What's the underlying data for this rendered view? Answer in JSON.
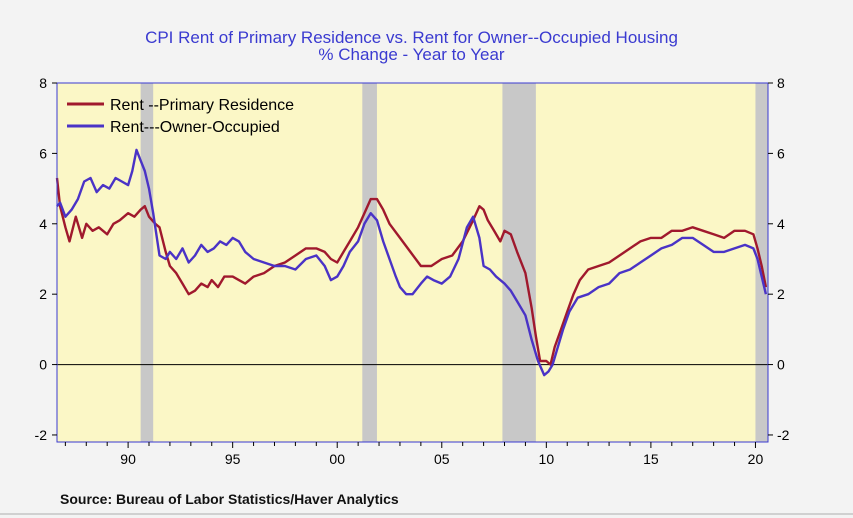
{
  "chart_data": {
    "type": "line",
    "title": "CPI Rent of Primary Residence vs. Rent for Owner--Occupied Housing",
    "subtitle": "% Change - Year to Year",
    "source": "Source:  Bureau of Labor Statistics/Haver Analytics",
    "x_ticks": [
      {
        "value": 1990,
        "label": "90"
      },
      {
        "value": 1995,
        "label": "95"
      },
      {
        "value": 2000,
        "label": "00"
      },
      {
        "value": 2005,
        "label": "05"
      },
      {
        "value": 2010,
        "label": "10"
      },
      {
        "value": 2015,
        "label": "15"
      },
      {
        "value": 2020,
        "label": "20"
      }
    ],
    "y_ticks": [
      {
        "value": 8,
        "label": "8"
      },
      {
        "value": 6,
        "label": "6"
      },
      {
        "value": 4,
        "label": "4"
      },
      {
        "value": 2,
        "label": "2"
      },
      {
        "value": 0,
        "label": "0"
      },
      {
        "value": -2,
        "label": "-2"
      }
    ],
    "xlim": [
      1986.6,
      2020.6
    ],
    "ylim": [
      -2.2,
      8
    ],
    "y_axis_right": true,
    "zero_line": true,
    "grid": false,
    "legend_position": "top-left",
    "recessions": [
      [
        1990.6,
        1991.2
      ],
      [
        2001.2,
        2001.9
      ],
      [
        2007.9,
        2009.5
      ],
      [
        2020.0,
        2020.6
      ]
    ],
    "colors": {
      "plot_background": "#fbf7c6",
      "recession": "#c8c8c8",
      "frame": "#3a3ad0",
      "title": "#3a3ad0"
    },
    "series": [
      {
        "name": "Rent --Primary Residence",
        "color": "#a0192d",
        "x": [
          1986.6,
          1986.75,
          1987.0,
          1987.2,
          1987.5,
          1987.8,
          1988.0,
          1988.3,
          1988.6,
          1989.0,
          1989.3,
          1989.6,
          1990.0,
          1990.3,
          1990.6,
          1990.8,
          1991.0,
          1991.3,
          1991.5,
          1991.8,
          1992.0,
          1992.3,
          1992.6,
          1992.9,
          1993.2,
          1993.5,
          1993.8,
          1994.0,
          1994.3,
          1994.6,
          1995.0,
          1995.3,
          1995.6,
          1996.0,
          1996.5,
          1997.0,
          1997.5,
          1998.0,
          1998.5,
          1999.0,
          1999.4,
          1999.7,
          2000.0,
          2000.3,
          2000.6,
          2001.0,
          2001.3,
          2001.6,
          2001.9,
          2002.2,
          2002.5,
          2003.0,
          2003.5,
          2004.0,
          2004.5,
          2005.0,
          2005.5,
          2006.0,
          2006.5,
          2006.8,
          2007.0,
          2007.2,
          2007.5,
          2007.8,
          2008.0,
          2008.3,
          2008.6,
          2009.0,
          2009.3,
          2009.5,
          2009.7,
          2010.0,
          2010.2,
          2010.4,
          2010.7,
          2011.0,
          2011.3,
          2011.6,
          2012.0,
          2012.5,
          2013.0,
          2013.5,
          2014.0,
          2014.5,
          2015.0,
          2015.5,
          2016.0,
          2016.5,
          2017.0,
          2017.5,
          2018.0,
          2018.5,
          2019.0,
          2019.5,
          2019.9,
          2020.1,
          2020.3,
          2020.5
        ],
        "values": [
          5.3,
          4.5,
          3.9,
          3.5,
          4.2,
          3.6,
          4.0,
          3.8,
          3.9,
          3.7,
          4.0,
          4.1,
          4.3,
          4.2,
          4.4,
          4.5,
          4.2,
          4.0,
          3.9,
          3.2,
          2.8,
          2.6,
          2.3,
          2.0,
          2.1,
          2.3,
          2.2,
          2.4,
          2.2,
          2.5,
          2.5,
          2.4,
          2.3,
          2.5,
          2.6,
          2.8,
          2.9,
          3.1,
          3.3,
          3.3,
          3.2,
          3.0,
          2.9,
          3.2,
          3.5,
          3.9,
          4.3,
          4.7,
          4.7,
          4.4,
          4.0,
          3.6,
          3.2,
          2.8,
          2.8,
          3.0,
          3.1,
          3.5,
          4.1,
          4.5,
          4.4,
          4.1,
          3.8,
          3.5,
          3.8,
          3.7,
          3.2,
          2.6,
          1.6,
          0.8,
          0.1,
          0.1,
          0.0,
          0.5,
          1.0,
          1.5,
          2.0,
          2.4,
          2.7,
          2.8,
          2.9,
          3.1,
          3.3,
          3.5,
          3.6,
          3.6,
          3.8,
          3.8,
          3.9,
          3.8,
          3.7,
          3.6,
          3.8,
          3.8,
          3.7,
          3.3,
          2.8,
          2.2
        ]
      },
      {
        "name": "Rent---Owner-Occupied",
        "color": "#4a33c6",
        "x": [
          1986.6,
          1986.75,
          1987.0,
          1987.3,
          1987.6,
          1987.9,
          1988.2,
          1988.5,
          1988.8,
          1989.1,
          1989.4,
          1989.7,
          1990.0,
          1990.2,
          1990.4,
          1990.6,
          1990.8,
          1991.0,
          1991.2,
          1991.5,
          1991.8,
          1992.0,
          1992.3,
          1992.6,
          1992.9,
          1993.2,
          1993.5,
          1993.8,
          1994.1,
          1994.4,
          1994.7,
          1995.0,
          1995.3,
          1995.6,
          1996.0,
          1996.5,
          1997.0,
          1997.5,
          1998.0,
          1998.5,
          1999.0,
          1999.4,
          1999.7,
          2000.0,
          2000.3,
          2000.6,
          2001.0,
          2001.3,
          2001.6,
          2001.9,
          2002.2,
          2002.5,
          2002.8,
          2003.0,
          2003.3,
          2003.6,
          2004.0,
          2004.3,
          2004.6,
          2005.0,
          2005.4,
          2005.8,
          2006.2,
          2006.5,
          2006.8,
          2007.0,
          2007.3,
          2007.6,
          2008.0,
          2008.3,
          2008.6,
          2009.0,
          2009.3,
          2009.6,
          2009.9,
          2010.1,
          2010.3,
          2010.5,
          2010.8,
          2011.1,
          2011.5,
          2012.0,
          2012.5,
          2013.0,
          2013.5,
          2014.0,
          2014.5,
          2015.0,
          2015.5,
          2016.0,
          2016.5,
          2017.0,
          2017.5,
          2018.0,
          2018.5,
          2019.0,
          2019.5,
          2019.9,
          2020.1,
          2020.3,
          2020.5
        ],
        "values": [
          4.5,
          4.6,
          4.2,
          4.4,
          4.7,
          5.2,
          5.3,
          4.9,
          5.1,
          5.0,
          5.3,
          5.2,
          5.1,
          5.5,
          6.1,
          5.8,
          5.5,
          5.0,
          4.3,
          3.1,
          3.0,
          3.2,
          3.0,
          3.3,
          2.9,
          3.1,
          3.4,
          3.2,
          3.3,
          3.5,
          3.4,
          3.6,
          3.5,
          3.2,
          3.0,
          2.9,
          2.8,
          2.8,
          2.7,
          3.0,
          3.1,
          2.8,
          2.4,
          2.5,
          2.8,
          3.2,
          3.5,
          4.0,
          4.3,
          4.1,
          3.5,
          3.0,
          2.5,
          2.2,
          2.0,
          2.0,
          2.3,
          2.5,
          2.4,
          2.3,
          2.5,
          3.0,
          3.9,
          4.2,
          3.6,
          2.8,
          2.7,
          2.5,
          2.3,
          2.1,
          1.8,
          1.4,
          0.7,
          0.1,
          -0.3,
          -0.2,
          0.0,
          0.4,
          1.0,
          1.5,
          1.9,
          2.0,
          2.2,
          2.3,
          2.6,
          2.7,
          2.9,
          3.1,
          3.3,
          3.4,
          3.6,
          3.6,
          3.4,
          3.2,
          3.2,
          3.3,
          3.4,
          3.3,
          3.0,
          2.5,
          2.0
        ]
      }
    ]
  }
}
